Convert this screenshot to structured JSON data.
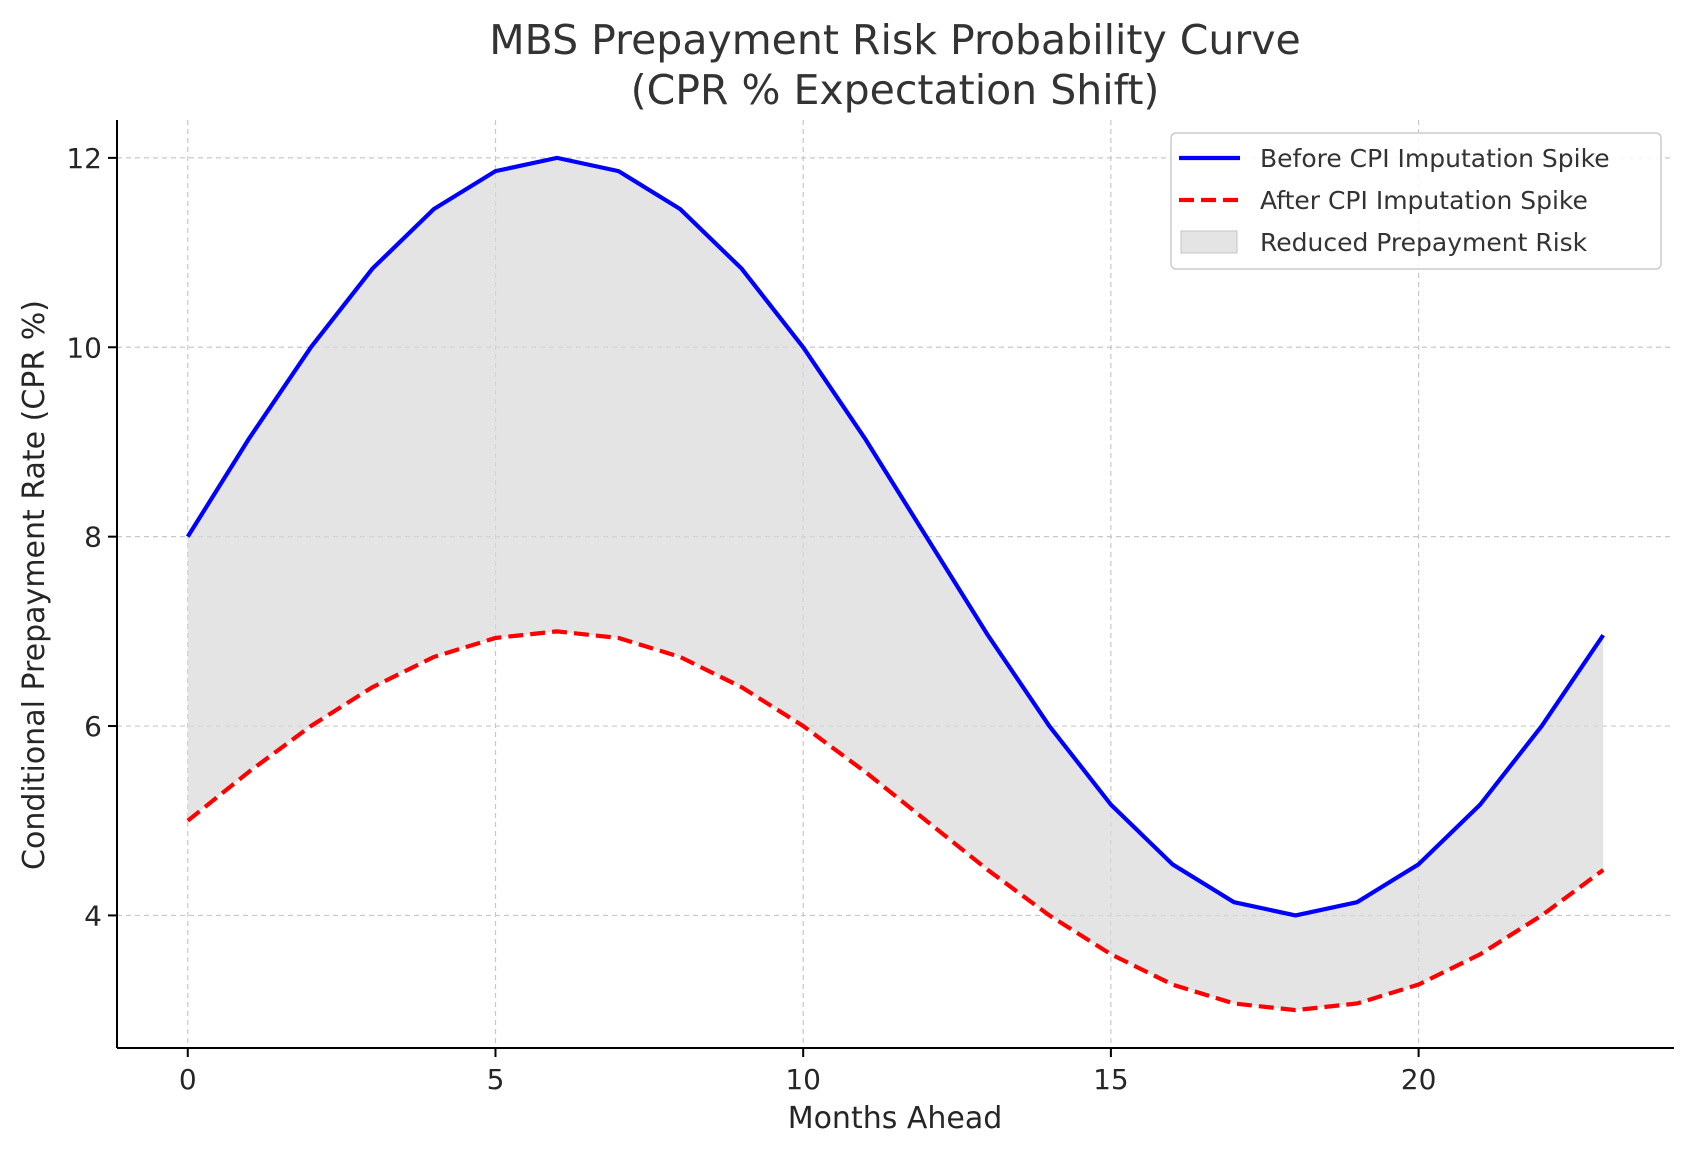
{
  "chart_data": {
    "type": "line",
    "title": [
      "MBS Prepayment Risk Probability Curve",
      "(CPR % Expectation Shift)"
    ],
    "xlabel": "Months Ahead",
    "ylabel": "Conditional Prepayment Rate (CPR %)",
    "xlim": [
      -1.15,
      24.15
    ],
    "ylim": [
      2.6,
      12.4
    ],
    "xticks": [
      0,
      5,
      10,
      15,
      20
    ],
    "yticks": [
      4,
      6,
      8,
      10,
      12
    ],
    "grid": true,
    "legend_position": "top-right",
    "x": [
      0,
      1,
      2,
      3,
      4,
      5,
      6,
      7,
      8,
      9,
      10,
      11,
      12,
      13,
      14,
      15,
      16,
      17,
      18,
      19,
      20,
      21,
      22,
      23
    ],
    "series": [
      {
        "name": "Before CPI Imputation Spike",
        "style": "solid",
        "color": "#0000ff",
        "values": [
          8.0,
          9.04,
          10.0,
          10.83,
          11.46,
          11.86,
          12.0,
          11.86,
          11.46,
          10.83,
          10.0,
          9.04,
          8.0,
          6.96,
          6.0,
          5.17,
          4.54,
          4.14,
          4.0,
          4.14,
          4.54,
          5.17,
          6.0,
          6.96
        ]
      },
      {
        "name": "After CPI Imputation Spike",
        "style": "dashed",
        "color": "#ff0000",
        "values": [
          5.0,
          5.52,
          6.0,
          6.41,
          6.73,
          6.93,
          7.0,
          6.93,
          6.73,
          6.41,
          6.0,
          5.52,
          5.0,
          4.48,
          4.0,
          3.59,
          3.27,
          3.07,
          3.0,
          3.07,
          3.27,
          3.59,
          4.0,
          4.48
        ]
      }
    ],
    "fill_between": {
      "name": "Reduced Prepayment Risk",
      "color": "#d9d9d9"
    }
  }
}
